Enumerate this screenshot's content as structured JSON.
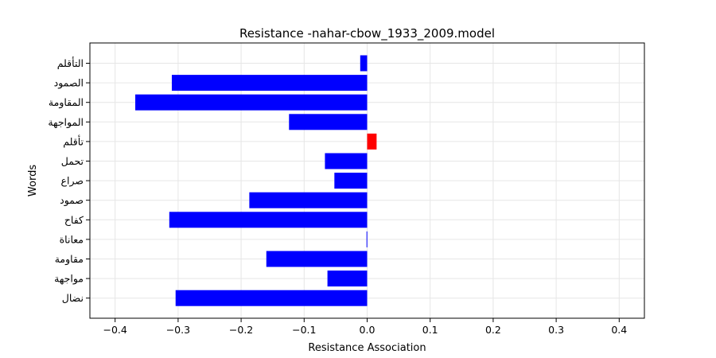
{
  "chart_data": {
    "type": "bar",
    "orientation": "horizontal",
    "title": "Resistance -nahar-cbow_1933_2009.model",
    "xlabel": "Resistance  Association",
    "ylabel": "Words",
    "xlim": [
      -0.44,
      0.44
    ],
    "xticks": [
      -0.4,
      -0.3,
      -0.2,
      -0.1,
      0.0,
      0.1,
      0.2,
      0.3,
      0.4
    ],
    "xtick_labels": [
      "−0.4",
      "−0.3",
      "−0.2",
      "−0.1",
      "0.0",
      "0.1",
      "0.2",
      "0.3",
      "0.4"
    ],
    "grid": true,
    "categories": [
      "التأقلم",
      "الصمود",
      "المقاومة",
      "المواجهة",
      "تأقلم",
      "تحمل",
      "صراع",
      "صمود",
      "كفاح",
      "معاناة",
      "مقاومة",
      "مواجهة",
      "نضال"
    ],
    "values": [
      -0.011,
      -0.31,
      -0.368,
      -0.124,
      0.015,
      -0.067,
      -0.052,
      -0.187,
      -0.314,
      -0.001,
      -0.16,
      -0.063,
      -0.304
    ],
    "colors": {
      "negative": "#0000ff",
      "positive": "#ff0000",
      "grid": "#e6e6e6",
      "axis": "#000000"
    }
  }
}
